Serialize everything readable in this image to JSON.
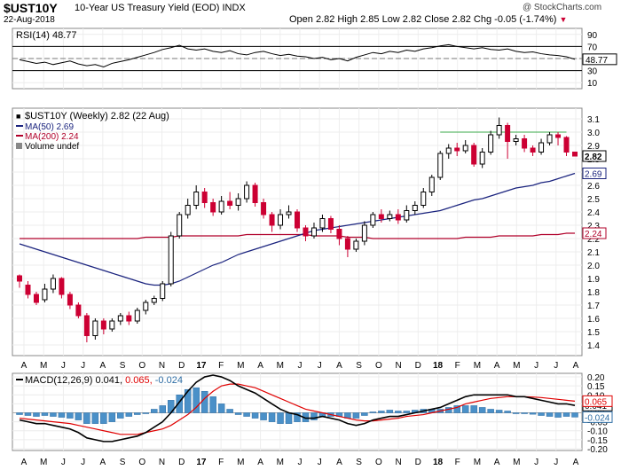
{
  "header": {
    "symbol": "$UST10Y",
    "description": "10-Year US Treasury Yield (EOD)  INDX",
    "date": "22-Aug-2018",
    "ohlc": "Open 2.82  High 2.85  Low 2.82  Close 2.82  Chg -0.05 (-1.74%)",
    "down_arrow": "▼",
    "credit": "@ StockCharts.com"
  },
  "colors": {
    "up": "#000000",
    "down": "#cc0033",
    "ma50": "#1a237e",
    "ma200": "#b0002a",
    "macd_line": "#000000",
    "signal_line": "#e00000",
    "histogram": "#4a90c8",
    "rsi_line": "#000000"
  },
  "chart_data": [
    {
      "type": "line",
      "panel": "rsi",
      "legend": "RSI(14) 48.77",
      "yticks": [
        10,
        30,
        50,
        70,
        90
      ],
      "ylim": [
        0,
        100
      ],
      "reference_lines": [
        30,
        70
      ],
      "last_value_label": "48.77",
      "series": [
        {
          "name": "RSI(14)",
          "values": [
            48,
            45,
            42,
            44,
            40,
            43,
            46,
            41,
            38,
            40,
            36,
            42,
            45,
            48,
            52,
            56,
            60,
            65,
            68,
            72,
            66,
            64,
            66,
            62,
            60,
            63,
            58,
            56,
            60,
            62,
            58,
            55,
            57,
            54,
            53,
            50,
            52,
            48,
            50,
            46,
            52,
            56,
            60,
            58,
            62,
            60,
            64,
            62,
            66,
            68,
            71,
            73,
            70,
            68,
            66,
            68,
            65,
            64,
            66,
            62,
            60,
            61,
            58,
            56,
            55,
            53,
            48.77
          ]
        }
      ]
    },
    {
      "type": "candlestick",
      "panel": "price",
      "title": "$UST10Y (Weekly) 2.82 (22 Aug)",
      "legend": [
        "MA(50) 2.69",
        "MA(200) 2.24",
        "Volume undef"
      ],
      "ylim": [
        1.32,
        3.18
      ],
      "yticks": [
        1.4,
        1.5,
        1.6,
        1.7,
        1.8,
        1.9,
        2.0,
        2.1,
        2.2,
        2.3,
        2.4,
        2.5,
        2.6,
        2.7,
        2.8,
        2.9,
        3.0,
        3.1
      ],
      "value_labels": [
        {
          "label": "2.82"
        },
        {
          "label": "2.69"
        },
        {
          "label": "2.24"
        }
      ],
      "resistance_level": 3.0,
      "x_labels": [
        "A",
        "M",
        "J",
        "J",
        "A",
        "S",
        "O",
        "N",
        "D",
        "17",
        "F",
        "M",
        "A",
        "M",
        "J",
        "J",
        "A",
        "S",
        "O",
        "N",
        "D",
        "18",
        "F",
        "M",
        "A",
        "M",
        "J",
        "J",
        "A"
      ],
      "candles": [
        [
          1.92,
          1.88,
          1.93,
          1.83
        ],
        [
          1.85,
          1.78,
          1.88,
          1.75
        ],
        [
          1.78,
          1.72,
          1.8,
          1.7
        ],
        [
          1.74,
          1.82,
          1.86,
          1.72
        ],
        [
          1.82,
          1.9,
          1.93,
          1.79
        ],
        [
          1.9,
          1.78,
          1.91,
          1.75
        ],
        [
          1.78,
          1.7,
          1.8,
          1.67
        ],
        [
          1.7,
          1.62,
          1.72,
          1.6
        ],
        [
          1.62,
          1.47,
          1.64,
          1.42
        ],
        [
          1.47,
          1.58,
          1.6,
          1.44
        ],
        [
          1.58,
          1.52,
          1.6,
          1.48
        ],
        [
          1.52,
          1.58,
          1.6,
          1.5
        ],
        [
          1.58,
          1.62,
          1.64,
          1.55
        ],
        [
          1.62,
          1.58,
          1.65,
          1.55
        ],
        [
          1.58,
          1.66,
          1.68,
          1.56
        ],
        [
          1.66,
          1.72,
          1.74,
          1.63
        ],
        [
          1.72,
          1.75,
          1.77,
          1.7
        ],
        [
          1.75,
          1.86,
          1.88,
          1.73
        ],
        [
          1.86,
          2.22,
          2.25,
          1.84
        ],
        [
          2.22,
          2.38,
          2.4,
          2.2
        ],
        [
          2.38,
          2.45,
          2.5,
          2.35
        ],
        [
          2.45,
          2.55,
          2.6,
          2.42
        ],
        [
          2.55,
          2.47,
          2.58,
          2.43
        ],
        [
          2.47,
          2.4,
          2.5,
          2.37
        ],
        [
          2.4,
          2.48,
          2.52,
          2.38
        ],
        [
          2.48,
          2.45,
          2.55,
          2.42
        ],
        [
          2.45,
          2.5,
          2.54,
          2.41
        ],
        [
          2.5,
          2.6,
          2.63,
          2.47
        ],
        [
          2.6,
          2.47,
          2.62,
          2.44
        ],
        [
          2.47,
          2.38,
          2.5,
          2.35
        ],
        [
          2.38,
          2.3,
          2.4,
          2.25
        ],
        [
          2.3,
          2.38,
          2.42,
          2.27
        ],
        [
          2.38,
          2.4,
          2.45,
          2.35
        ],
        [
          2.4,
          2.28,
          2.42,
          2.25
        ],
        [
          2.28,
          2.22,
          2.3,
          2.18
        ],
        [
          2.22,
          2.28,
          2.32,
          2.2
        ],
        [
          2.28,
          2.35,
          2.38,
          2.25
        ],
        [
          2.35,
          2.27,
          2.37,
          2.24
        ],
        [
          2.27,
          2.2,
          2.3,
          2.15
        ],
        [
          2.2,
          2.12,
          2.22,
          2.06
        ],
        [
          2.12,
          2.18,
          2.2,
          2.1
        ],
        [
          2.18,
          2.3,
          2.33,
          2.15
        ],
        [
          2.3,
          2.38,
          2.4,
          2.28
        ],
        [
          2.38,
          2.35,
          2.42,
          2.32
        ],
        [
          2.35,
          2.38,
          2.41,
          2.33
        ],
        [
          2.38,
          2.34,
          2.42,
          2.31
        ],
        [
          2.34,
          2.41,
          2.45,
          2.32
        ],
        [
          2.41,
          2.45,
          2.48,
          2.38
        ],
        [
          2.45,
          2.55,
          2.58,
          2.43
        ],
        [
          2.55,
          2.66,
          2.68,
          2.52
        ],
        [
          2.66,
          2.84,
          2.86,
          2.64
        ],
        [
          2.84,
          2.88,
          2.91,
          2.8
        ],
        [
          2.88,
          2.86,
          2.92,
          2.82
        ],
        [
          2.86,
          2.9,
          2.94,
          2.84
        ],
        [
          2.9,
          2.76,
          2.92,
          2.74
        ],
        [
          2.76,
          2.85,
          2.88,
          2.73
        ],
        [
          2.85,
          2.98,
          3.01,
          2.83
        ],
        [
          2.98,
          3.05,
          3.11,
          2.95
        ],
        [
          3.05,
          2.93,
          3.07,
          2.8
        ],
        [
          2.93,
          2.95,
          2.98,
          2.9
        ],
        [
          2.95,
          2.88,
          2.98,
          2.85
        ],
        [
          2.88,
          2.85,
          2.9,
          2.82
        ],
        [
          2.85,
          2.92,
          2.95,
          2.83
        ],
        [
          2.92,
          2.98,
          3.0,
          2.9
        ],
        [
          2.98,
          2.96,
          3.0,
          2.9
        ],
        [
          2.96,
          2.85,
          2.97,
          2.82
        ],
        [
          2.85,
          2.82,
          2.85,
          2.82
        ]
      ],
      "series": [
        {
          "name": "MA(50)",
          "values": [
            2.16,
            2.14,
            2.12,
            2.1,
            2.08,
            2.06,
            2.04,
            2.02,
            2.0,
            1.98,
            1.96,
            1.94,
            1.92,
            1.9,
            1.88,
            1.86,
            1.85,
            1.85,
            1.86,
            1.88,
            1.91,
            1.94,
            1.97,
            2.0,
            2.02,
            2.05,
            2.08,
            2.1,
            2.12,
            2.14,
            2.16,
            2.18,
            2.2,
            2.22,
            2.24,
            2.26,
            2.27,
            2.28,
            2.29,
            2.3,
            2.31,
            2.32,
            2.33,
            2.34,
            2.35,
            2.36,
            2.37,
            2.38,
            2.39,
            2.4,
            2.41,
            2.43,
            2.45,
            2.47,
            2.49,
            2.5,
            2.52,
            2.54,
            2.56,
            2.58,
            2.59,
            2.6,
            2.62,
            2.63,
            2.65,
            2.67,
            2.69
          ]
        },
        {
          "name": "MA(200)",
          "values": [
            2.2,
            2.2,
            2.2,
            2.2,
            2.2,
            2.2,
            2.2,
            2.2,
            2.2,
            2.2,
            2.2,
            2.2,
            2.2,
            2.2,
            2.2,
            2.21,
            2.21,
            2.21,
            2.21,
            2.22,
            2.22,
            2.22,
            2.22,
            2.22,
            2.22,
            2.22,
            2.22,
            2.23,
            2.23,
            2.23,
            2.23,
            2.23,
            2.23,
            2.23,
            2.23,
            2.22,
            2.22,
            2.22,
            2.22,
            2.21,
            2.21,
            2.21,
            2.2,
            2.2,
            2.2,
            2.2,
            2.2,
            2.2,
            2.2,
            2.2,
            2.2,
            2.2,
            2.2,
            2.21,
            2.21,
            2.21,
            2.21,
            2.22,
            2.22,
            2.22,
            2.22,
            2.22,
            2.23,
            2.23,
            2.23,
            2.24,
            2.24
          ]
        }
      ]
    },
    {
      "type": "line",
      "panel": "macd",
      "legend": "MACD(12,26,9) 0.041, 0.065, -0.024",
      "legend_parts": [
        "MACD(12,26,9) 0.041,",
        "0.065,",
        "-0.024"
      ],
      "ylim": [
        -0.21,
        0.22
      ],
      "yticks": [
        -0.2,
        -0.15,
        -0.1,
        -0.05,
        0.0,
        0.05,
        0.1,
        0.15,
        0.2
      ],
      "ytick_labels": [
        "-0.20",
        "-0.15",
        "-0.10",
        "-0.05",
        "0.00",
        "0.05",
        "0.10",
        "0.15",
        "0.20"
      ],
      "value_labels": [
        "0.065",
        "0.041",
        "-0.024"
      ],
      "x_labels": [
        "A",
        "M",
        "J",
        "J",
        "A",
        "S",
        "O",
        "N",
        "D",
        "17",
        "F",
        "M",
        "A",
        "M",
        "J",
        "J",
        "A",
        "S",
        "O",
        "N",
        "D",
        "18",
        "F",
        "M",
        "A",
        "M",
        "J",
        "J",
        "A"
      ],
      "series": [
        {
          "name": "MACD",
          "values": [
            -0.04,
            -0.05,
            -0.06,
            -0.06,
            -0.07,
            -0.08,
            -0.09,
            -0.11,
            -0.14,
            -0.15,
            -0.16,
            -0.16,
            -0.15,
            -0.14,
            -0.13,
            -0.11,
            -0.08,
            -0.05,
            0.0,
            0.06,
            0.12,
            0.17,
            0.2,
            0.21,
            0.2,
            0.18,
            0.15,
            0.13,
            0.11,
            0.08,
            0.05,
            0.02,
            0.0,
            -0.01,
            -0.03,
            -0.03,
            -0.02,
            -0.03,
            -0.04,
            -0.06,
            -0.07,
            -0.06,
            -0.04,
            -0.03,
            -0.02,
            -0.02,
            -0.01,
            0.0,
            0.01,
            0.02,
            0.03,
            0.05,
            0.07,
            0.09,
            0.1,
            0.1,
            0.1,
            0.1,
            0.1,
            0.09,
            0.09,
            0.08,
            0.07,
            0.06,
            0.05,
            0.05,
            0.041
          ]
        },
        {
          "name": "Signal",
          "values": [
            -0.03,
            -0.035,
            -0.04,
            -0.045,
            -0.05,
            -0.055,
            -0.06,
            -0.07,
            -0.08,
            -0.09,
            -0.1,
            -0.11,
            -0.12,
            -0.12,
            -0.12,
            -0.11,
            -0.1,
            -0.09,
            -0.07,
            -0.04,
            -0.01,
            0.03,
            0.08,
            0.12,
            0.15,
            0.16,
            0.16,
            0.15,
            0.14,
            0.12,
            0.1,
            0.08,
            0.06,
            0.04,
            0.02,
            0.01,
            0.0,
            -0.01,
            -0.02,
            -0.03,
            -0.04,
            -0.045,
            -0.045,
            -0.04,
            -0.035,
            -0.03,
            -0.02,
            -0.015,
            -0.01,
            0.0,
            0.01,
            0.02,
            0.03,
            0.05,
            0.06,
            0.07,
            0.08,
            0.085,
            0.09,
            0.09,
            0.09,
            0.088,
            0.085,
            0.08,
            0.075,
            0.07,
            0.065
          ]
        },
        {
          "name": "Histogram",
          "values": [
            -0.01,
            -0.015,
            -0.02,
            -0.015,
            -0.02,
            -0.025,
            -0.03,
            -0.04,
            -0.06,
            -0.06,
            -0.06,
            -0.05,
            -0.03,
            -0.02,
            -0.01,
            0.0,
            0.02,
            0.04,
            0.07,
            0.1,
            0.13,
            0.14,
            0.12,
            0.09,
            0.05,
            0.02,
            -0.01,
            -0.02,
            -0.03,
            -0.04,
            -0.05,
            -0.06,
            -0.06,
            -0.05,
            -0.05,
            -0.04,
            -0.02,
            -0.02,
            -0.02,
            -0.03,
            -0.03,
            -0.015,
            0.005,
            0.01,
            0.015,
            0.01,
            0.01,
            0.015,
            0.02,
            0.02,
            0.02,
            0.03,
            0.04,
            0.04,
            0.04,
            0.03,
            0.02,
            0.015,
            0.01,
            0.0,
            0.0,
            -0.008,
            -0.015,
            -0.02,
            -0.025,
            -0.02,
            -0.024
          ]
        }
      ]
    }
  ]
}
